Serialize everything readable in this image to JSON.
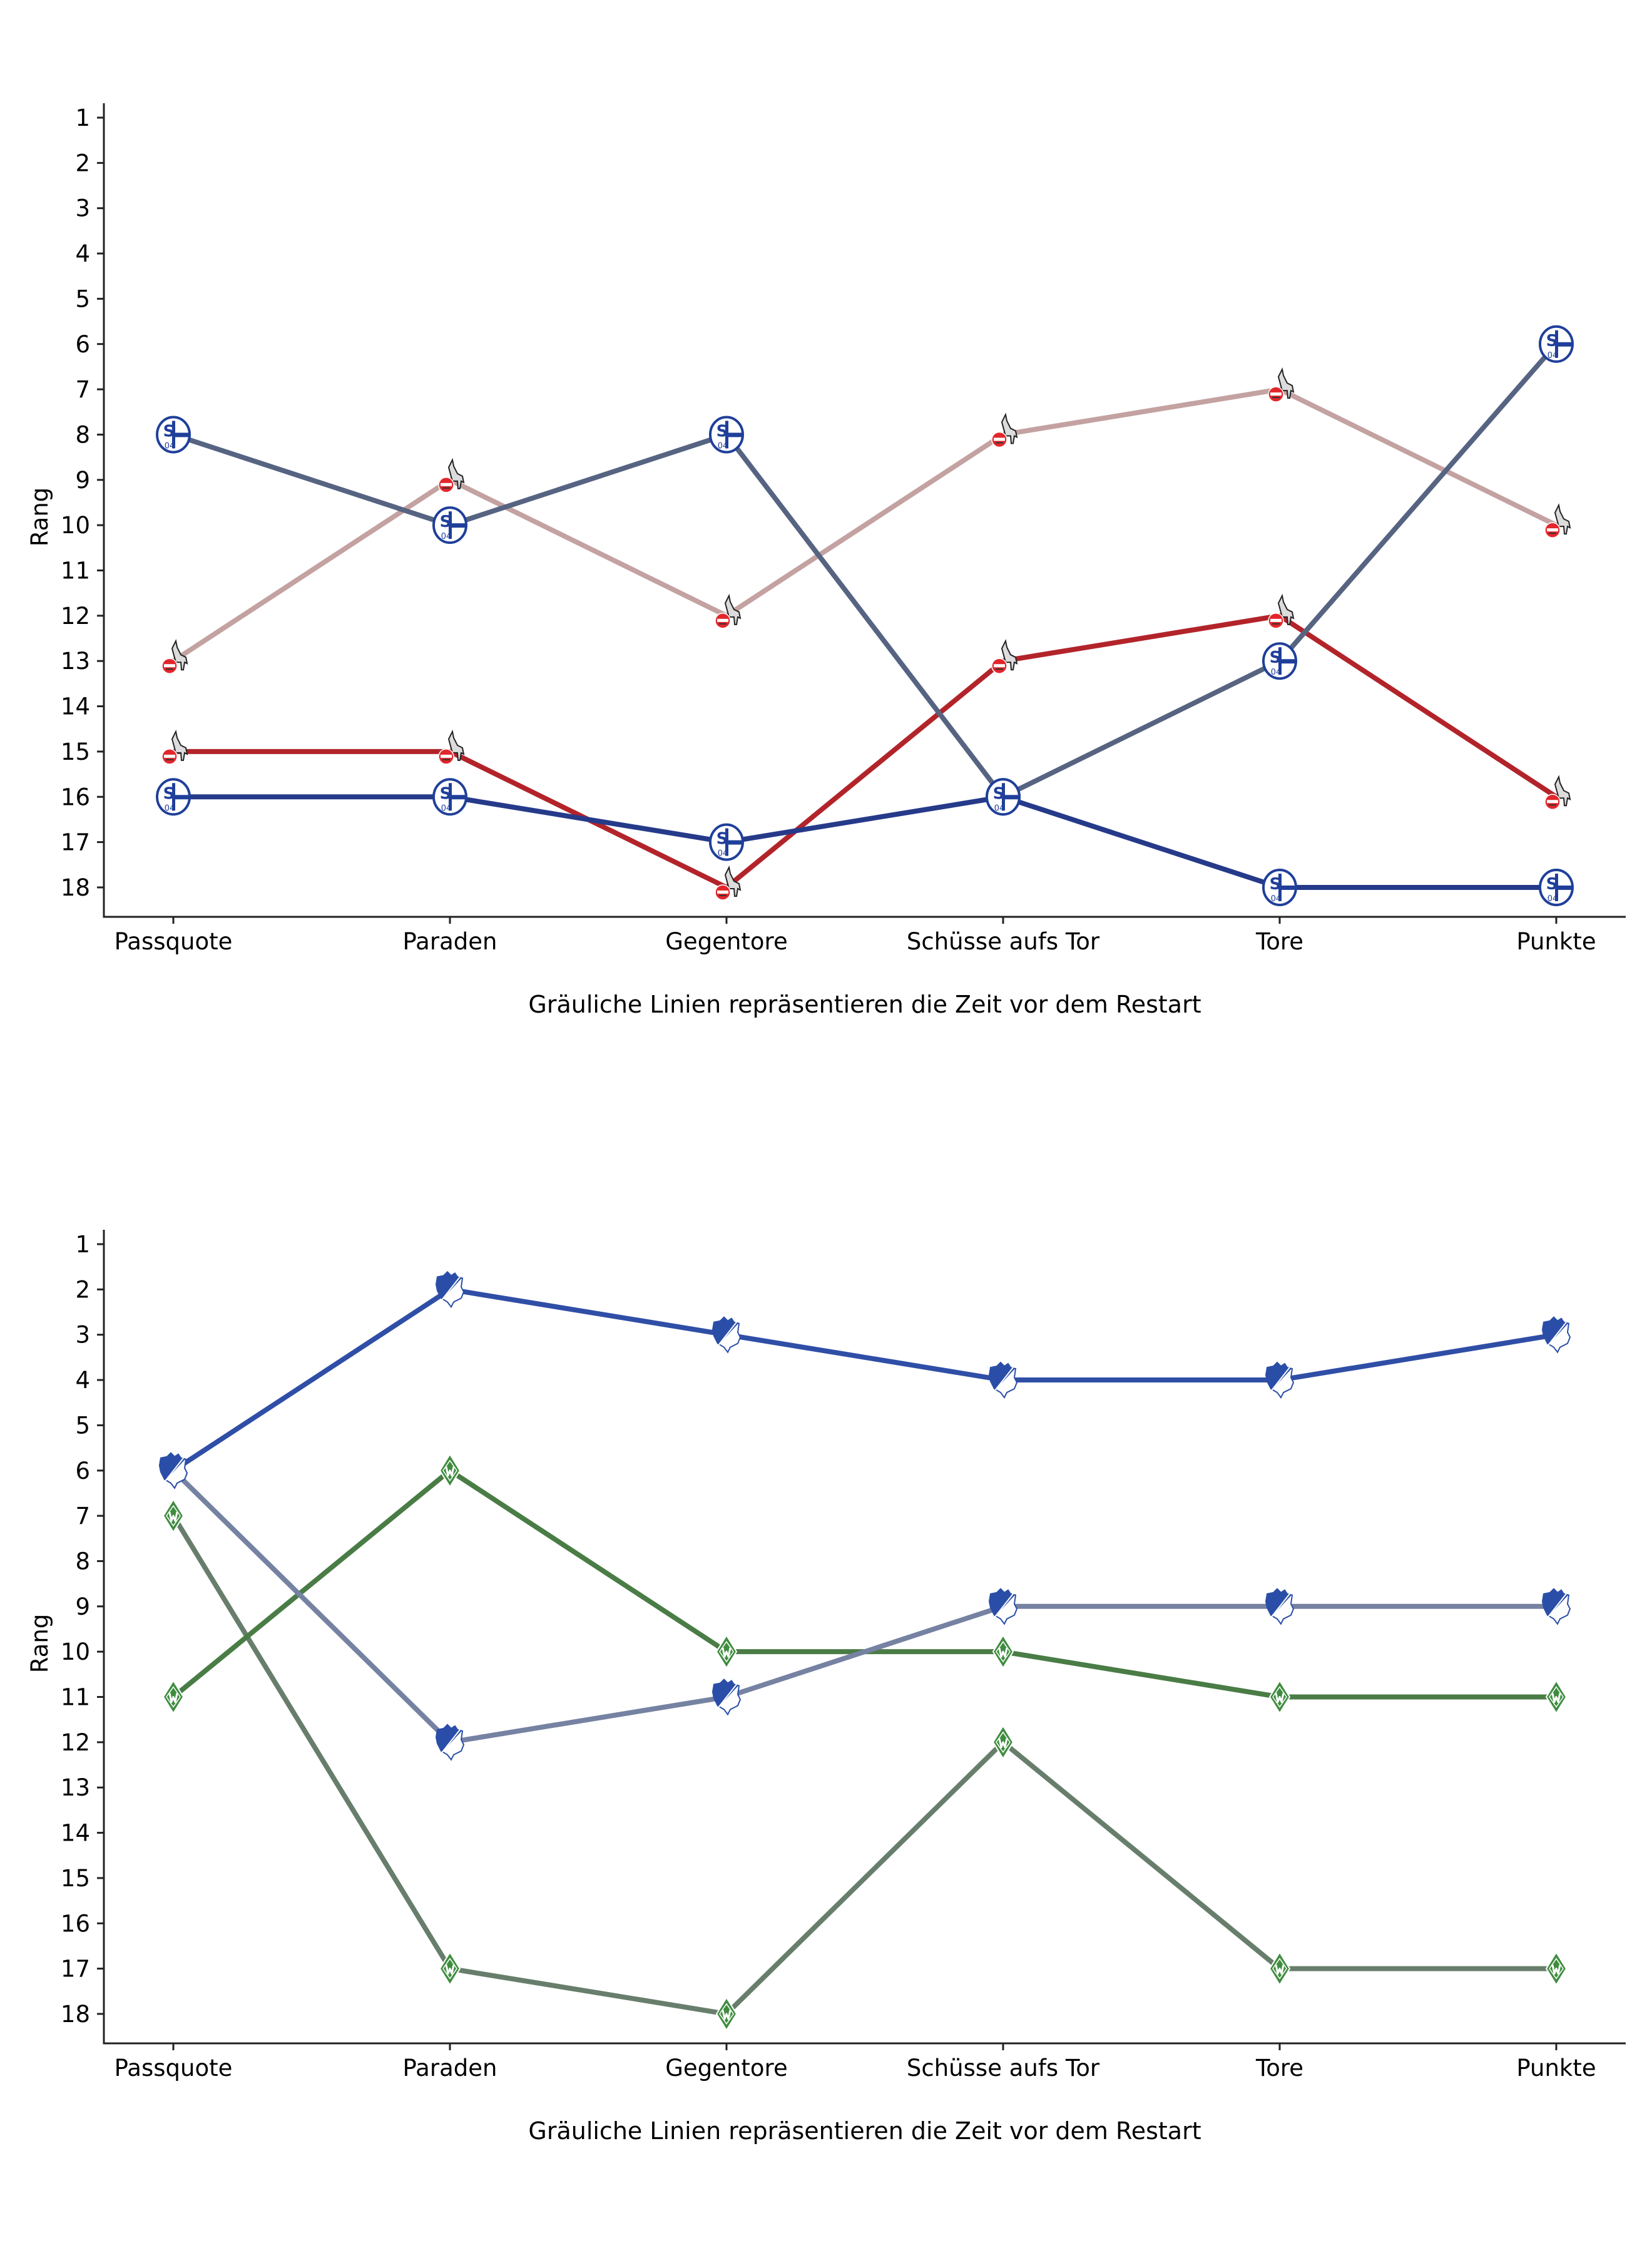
{
  "chart_data": [
    {
      "type": "line",
      "title": "",
      "xlabel": "Gräuliche Linien repräsentieren die Zeit vor dem Restart",
      "ylabel": "Rang",
      "categories": [
        "Passquote",
        "Paraden",
        "Gegentore",
        "Schüsse aufs Tor",
        "Tore",
        "Punkte"
      ],
      "yticks": [
        1,
        2,
        3,
        4,
        5,
        6,
        7,
        8,
        9,
        10,
        11,
        12,
        13,
        14,
        15,
        16,
        17,
        18
      ],
      "ylim": [
        18.6,
        1
      ],
      "y_inverted": true,
      "grid": false,
      "legend": "none",
      "series": [
        {
          "name": "1. FC Köln (vor dem Restart)",
          "team": "koeln",
          "period": "before",
          "color": "#c4a2a2",
          "marker": "koeln-logo-icon",
          "values": [
            13,
            9,
            12,
            8,
            7,
            10
          ]
        },
        {
          "name": "1. FC Köln (nach dem Restart)",
          "team": "koeln",
          "period": "after",
          "color": "#b2242a",
          "marker": "koeln-logo-icon",
          "values": [
            15,
            15,
            18,
            13,
            12,
            16
          ]
        },
        {
          "name": "FC Schalke 04 (vor dem Restart)",
          "team": "schalke",
          "period": "before",
          "color": "#566482",
          "marker": "schalke-logo-icon",
          "values": [
            8,
            10,
            8,
            16,
            13,
            6
          ]
        },
        {
          "name": "FC Schalke 04 (nach dem Restart)",
          "team": "schalke",
          "period": "after",
          "color": "#263a8a",
          "marker": "schalke-logo-icon",
          "values": [
            16,
            16,
            17,
            16,
            18,
            18
          ]
        }
      ]
    },
    {
      "type": "line",
      "title": "",
      "xlabel": "Gräuliche Linien repräsentieren die Zeit vor dem Restart",
      "ylabel": "Rang",
      "categories": [
        "Passquote",
        "Paraden",
        "Gegentore",
        "Schüsse aufs Tor",
        "Tore",
        "Punkte"
      ],
      "yticks": [
        1,
        2,
        3,
        4,
        5,
        6,
        7,
        8,
        9,
        10,
        11,
        12,
        13,
        14,
        15,
        16,
        17,
        18
      ],
      "ylim": [
        18.6,
        1
      ],
      "y_inverted": true,
      "grid": false,
      "legend": "none",
      "series": [
        {
          "name": "Werder Bremen (vor dem Restart)",
          "team": "bremen",
          "period": "before",
          "color": "#687e6c",
          "marker": "bremen-logo-icon",
          "values": [
            7,
            17,
            18,
            12,
            17,
            17
          ]
        },
        {
          "name": "Werder Bremen (nach dem Restart)",
          "team": "bremen",
          "period": "after",
          "color": "#4a7c46",
          "marker": "bremen-logo-icon",
          "values": [
            11,
            6,
            10,
            10,
            11,
            11
          ]
        },
        {
          "name": "TSG Hoffenheim (vor dem Restart)",
          "team": "hoffenheim",
          "period": "before",
          "color": "#7682a2",
          "marker": "hoffenheim-logo-icon",
          "values": [
            6,
            12,
            11,
            9,
            9,
            9
          ]
        },
        {
          "name": "TSG Hoffenheim (nach dem Restart)",
          "team": "hoffenheim",
          "period": "after",
          "color": "#2f4ea6",
          "marker": "hoffenheim-logo-icon",
          "values": [
            6,
            2,
            3,
            4,
            4,
            3
          ]
        }
      ]
    }
  ],
  "team_colors": {
    "schalke": "#1f3f9a",
    "koeln": "#e3262b",
    "hoffenheim": "#2a4ea8",
    "bremen": "#3f8c3f"
  }
}
